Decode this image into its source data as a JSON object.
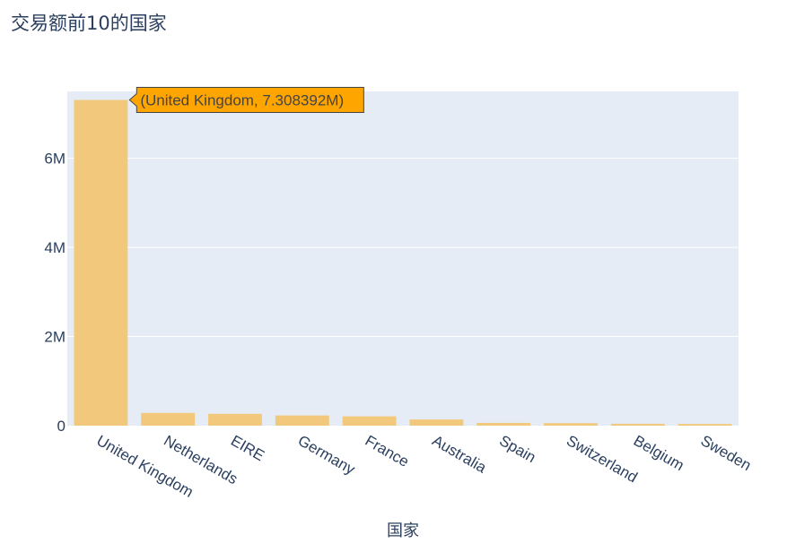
{
  "chart_data": {
    "type": "bar",
    "title": "交易额前10的国家",
    "xlabel": "国家",
    "ylabel": "",
    "categories": [
      "United Kingdom",
      "Netherlands",
      "EIRE",
      "Germany",
      "France",
      "Australia",
      "Spain",
      "Switzerland",
      "Belgium",
      "Sweden"
    ],
    "values": [
      7308392,
      285446,
      265546,
      228867,
      209024,
      138521,
      61577,
      56444,
      41196,
      38378
    ],
    "ylim": [
      0,
      7500000
    ],
    "yticks": [
      0,
      2000000,
      4000000,
      6000000
    ],
    "ytick_labels": [
      "0",
      "2M",
      "4M",
      "6M"
    ],
    "grid": true,
    "colors": {
      "bar": "#f2c97c",
      "plot_bg": "#e5ecf6",
      "grid": "#ffffff",
      "hover_bg": "#ffa500",
      "text": "#2a3f5f"
    },
    "hover": {
      "text": "(United Kingdom, 7.308392M)"
    }
  }
}
